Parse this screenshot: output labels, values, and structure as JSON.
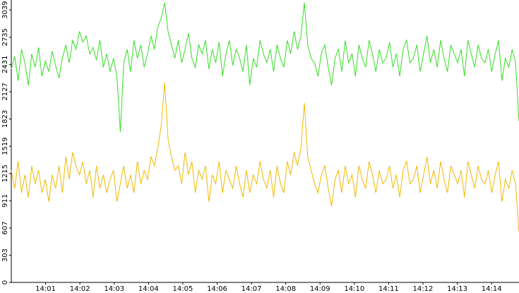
{
  "chart_data": {
    "type": "line",
    "xlim": [
      0,
      14.8
    ],
    "xticks": [
      {
        "value": 1,
        "label": "14:01"
      },
      {
        "value": 2,
        "label": "14:02"
      },
      {
        "value": 3,
        "label": "14:03"
      },
      {
        "value": 4,
        "label": "14:04"
      },
      {
        "value": 5,
        "label": "14:05"
      },
      {
        "value": 6,
        "label": "14:06"
      },
      {
        "value": 7,
        "label": "14:07"
      },
      {
        "value": 8,
        "label": "14:08"
      },
      {
        "value": 9,
        "label": "14:09"
      },
      {
        "value": 10,
        "label": "14:10"
      },
      {
        "value": 11,
        "label": "14:11"
      },
      {
        "value": 12,
        "label": "14:12"
      },
      {
        "value": 13,
        "label": "14:13"
      },
      {
        "value": 14,
        "label": "14:14"
      }
    ],
    "ylim": [
      0,
      3150
    ],
    "yticks": [
      0,
      303,
      607,
      911,
      1215,
      1519,
      1823,
      2127,
      2431,
      2735,
      3039
    ],
    "series": [
      {
        "color": "#33dd22",
        "values": [
          2380,
          2520,
          2250,
          2600,
          2450,
          2200,
          2550,
          2400,
          2620,
          2300,
          2470,
          2350,
          2580,
          2420,
          2280,
          2500,
          2650,
          2450,
          2700,
          2600,
          2800,
          2680,
          2750,
          2550,
          2620,
          2480,
          2700,
          2400,
          2550,
          2350,
          2500,
          2300,
          1680,
          2450,
          2600,
          2350,
          2700,
          2500,
          2650,
          2400,
          2550,
          2750,
          2600,
          2850,
          2950,
          3120,
          2800,
          2650,
          2500,
          2700,
          2450,
          2600,
          2780,
          2500,
          2400,
          2650,
          2550,
          2700,
          2380,
          2600,
          2450,
          2680,
          2300,
          2550,
          2700,
          2420,
          2600,
          2500,
          2350,
          2650,
          2200,
          2500,
          2400,
          2700,
          2550,
          2450,
          2600,
          2350,
          2650,
          2500,
          2400,
          2700,
          2550,
          2800,
          2600,
          2750,
          3120,
          2650,
          2500,
          2450,
          2300,
          2550,
          2650,
          2400,
          2200,
          2500,
          2600,
          2350,
          2700,
          2450,
          2550,
          2300,
          2650,
          2500,
          2400,
          2700,
          2550,
          2350,
          2600,
          2450,
          2500,
          2680,
          2400,
          2550,
          2300,
          2600,
          2700,
          2450,
          2500,
          2650,
          2350,
          2550,
          2750,
          2450,
          2600,
          2400,
          2700,
          2500,
          2350,
          2650,
          2550,
          2450,
          2600,
          2300,
          2700,
          2550,
          2400,
          2650,
          2500,
          2450,
          2600,
          2350,
          2550,
          2700,
          2250,
          2500,
          2400,
          2600,
          2450,
          1800
        ]
      },
      {
        "color": "#f2b800",
        "values": [
          1250,
          1050,
          1350,
          1000,
          1200,
          950,
          1300,
          1100,
          1250,
          1000,
          1150,
          900,
          1200,
          1050,
          1300,
          1000,
          1400,
          1150,
          1450,
          1300,
          1200,
          1350,
          1100,
          1250,
          950,
          1300,
          1050,
          1200,
          1000,
          1150,
          1250,
          900,
          1100,
          1300,
          1050,
          1200,
          1000,
          1350,
          1100,
          1250,
          1150,
          1400,
          1300,
          1500,
          1750,
          2230,
          1600,
          1400,
          1250,
          1300,
          1100,
          1450,
          1200,
          1350,
          1000,
          1250,
          1150,
          1300,
          900,
          1200,
          1100,
          1350,
          1000,
          1250,
          1150,
          1050,
          1300,
          1100,
          950,
          1250,
          1000,
          1200,
          1100,
          1350,
          1150,
          1050,
          1250,
          950,
          1300,
          1100,
          1000,
          1350,
          1200,
          1450,
          1300,
          1500,
          2000,
          1400,
          1250,
          1100,
          1000,
          1200,
          1300,
          1050,
          850,
          1150,
          1250,
          1000,
          1300,
          1100,
          1200,
          950,
          1300,
          1150,
          1050,
          1350,
          1200,
          1000,
          1250,
          1100,
          1150,
          1300,
          1050,
          1200,
          950,
          1250,
          1350,
          1100,
          1150,
          1300,
          1000,
          1200,
          1400,
          1100,
          1250,
          1050,
          1350,
          1150,
          1000,
          1300,
          1200,
          1100,
          1250,
          950,
          1350,
          1200,
          1050,
          1300,
          1150,
          1100,
          1250,
          1000,
          1200,
          1350,
          900,
          1150,
          1050,
          1250,
          1100,
          560
        ]
      }
    ]
  }
}
